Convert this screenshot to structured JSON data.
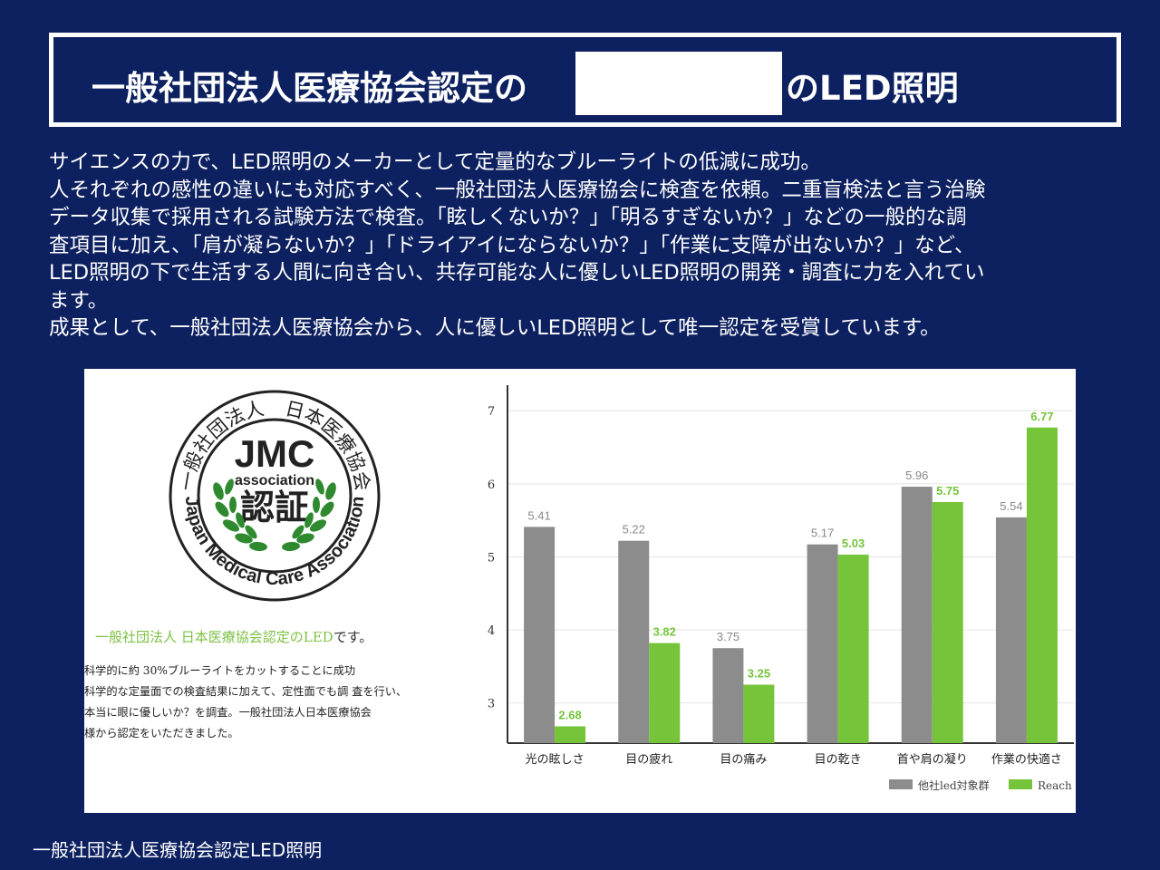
{
  "header": {
    "title_part1": "一般社団法人医療協会認定の",
    "title_part2": "のLED照明"
  },
  "intro": {
    "lines": [
      "サイエンスの力で、LED照明のメーカーとして定量的なブルーライトの低減に成功。",
      "人それぞれの感性の違いにも対応すべく、一般社団法人医療協会に検査を依頼。二重盲検法と言う治験",
      "データ収集で採用される試験方法で検査。「眩しくないか？」「明るすぎないか？」などの一般的な調",
      "査項目に加え、「肩が凝らないか？」「ドライアイにならないか？」「作業に支障が出ないか？」など、",
      "LED照明の下で生活する人間に向き合い、共存可能な人に優しいLED照明の開発・調査に力を入れてい",
      "ます。",
      "成果として、一般社団法人医療協会から、人に優しいLED照明として唯一認定を受賞しています。"
    ]
  },
  "seal": {
    "arc_top": "一般社団法人　日本医療協会",
    "arc_bottom": "Japan Medical Care Association",
    "logo": "JMC",
    "sub": "association",
    "kanji": "認証"
  },
  "certification": {
    "heading_green": "一般社団法人 日本医療協会認定のLED",
    "heading_suffix": "です。",
    "lines": [
      "科学的に約 30%ブルーライトをカットすることに成功",
      "  科学的な定量面での検査結果に加えて、定性面でも調 査を行い、",
      "  本当に眼に優しいか？を調査。一般社団法人日本医療協会",
      "  様から認定をいただきました。"
    ]
  },
  "chart_data": {
    "type": "bar",
    "categories": [
      "光の眩しさ",
      "目の疲れ",
      "目の痛み",
      "目の乾き",
      "首や肩の凝り",
      "作業の快適さ"
    ],
    "series": [
      {
        "name": "他社led対象群",
        "values": [
          5.41,
          5.22,
          3.75,
          5.17,
          5.96,
          5.54
        ],
        "color": "#8c8c8c"
      },
      {
        "name": "Reach",
        "values": [
          2.68,
          3.82,
          3.25,
          5.03,
          5.75,
          6.77
        ],
        "color": "#76c43a"
      }
    ],
    "yticks": [
      3,
      4,
      5,
      6,
      7
    ],
    "ylim": [
      2.45,
      7.35
    ],
    "grid": true,
    "legend": "bottom-right"
  },
  "footer": {
    "caption": "一般社団法人医療協会認定LED照明"
  },
  "colors": {
    "background": "#0d2160",
    "gray_bar": "#8c8c8c",
    "green_bar": "#76c43a",
    "green_label": "#76c43a"
  }
}
